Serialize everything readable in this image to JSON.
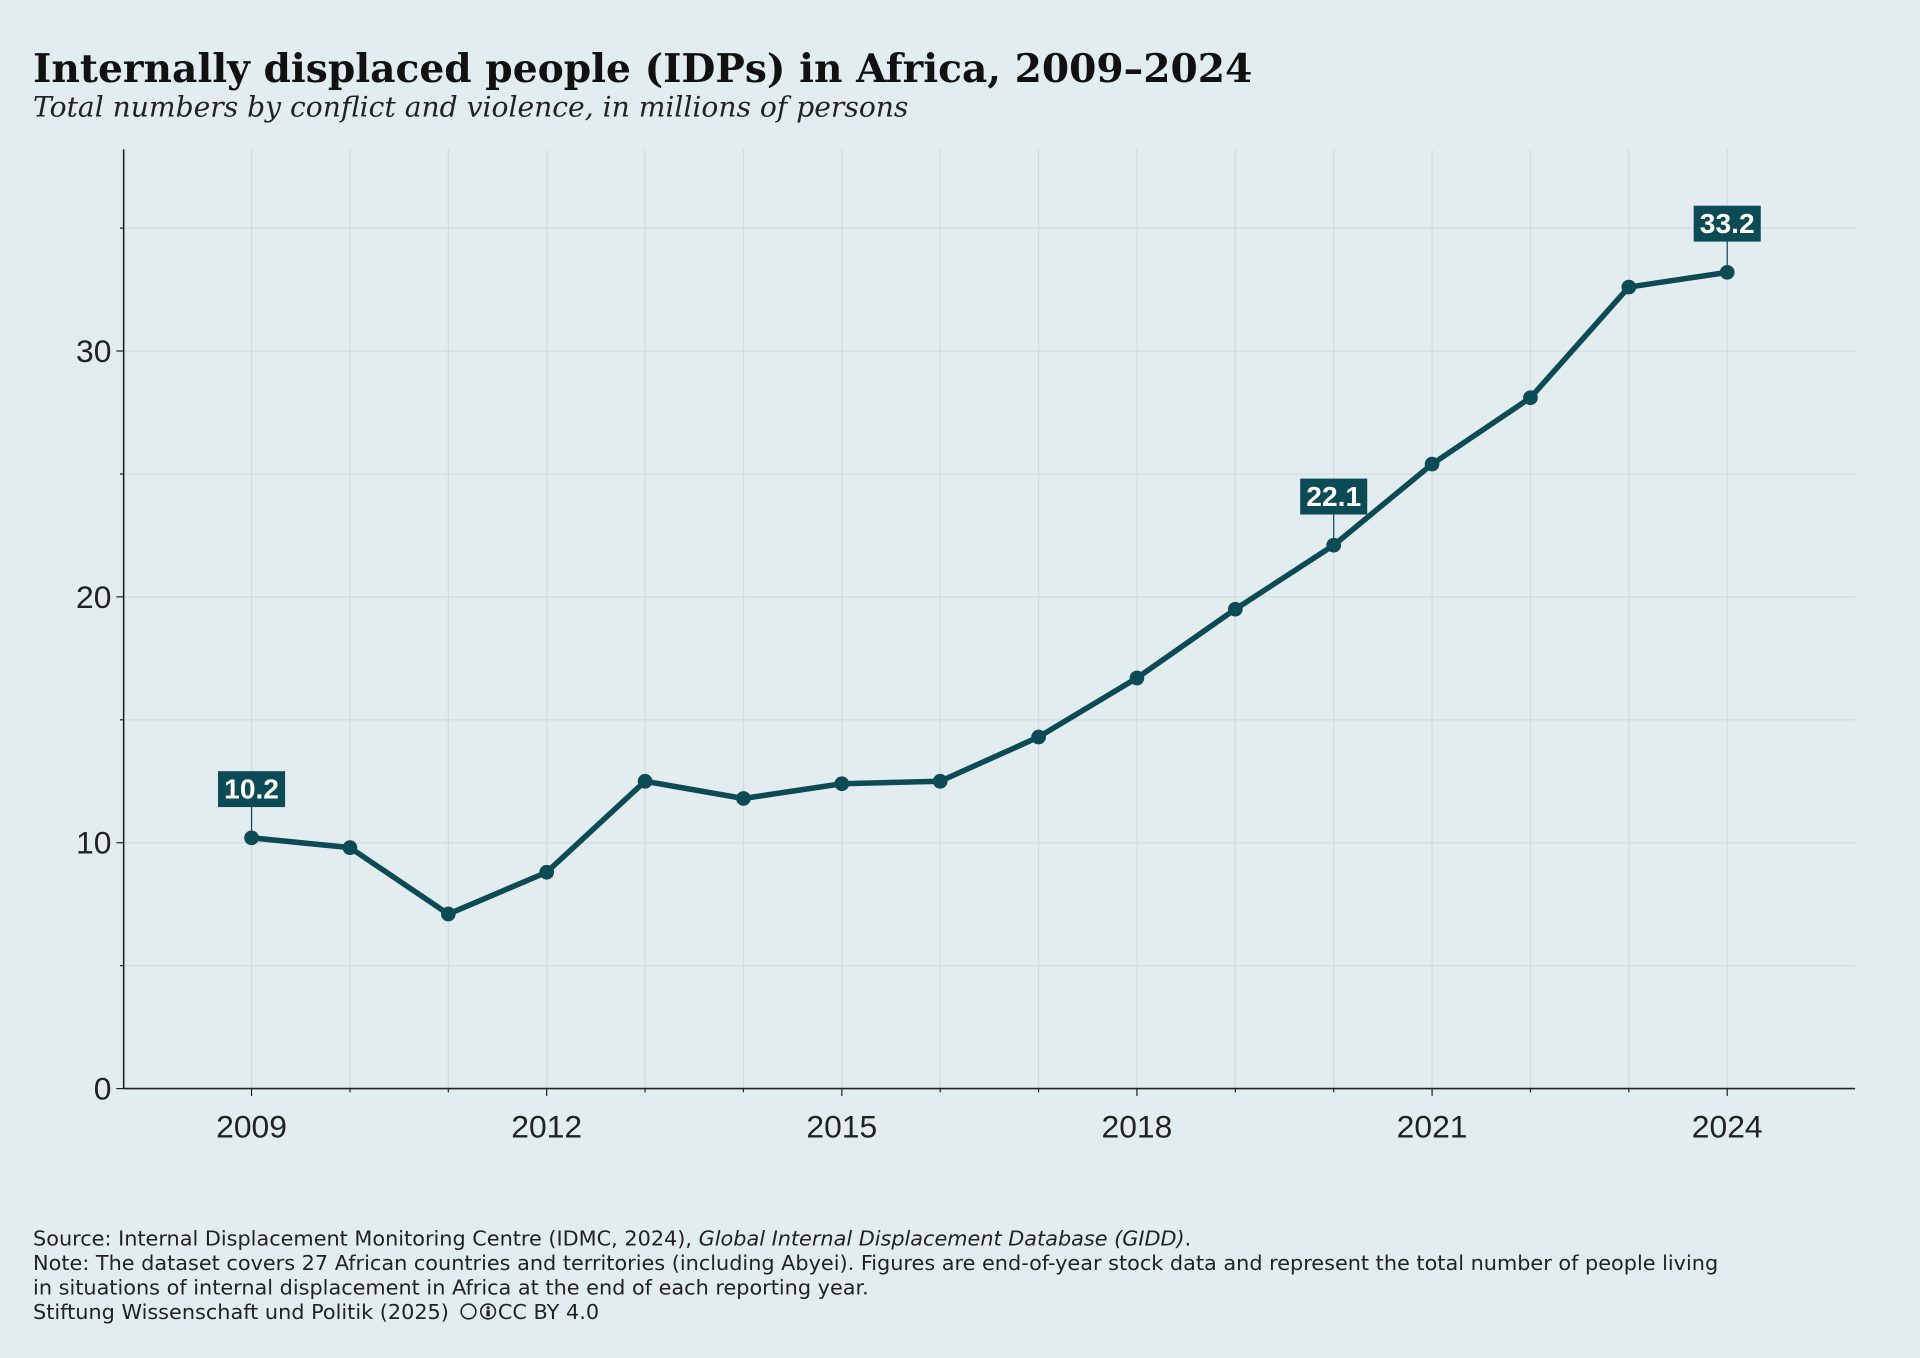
{
  "chart_data": {
    "type": "line",
    "title": "Internally displaced people (IDPs) in Africa, 2009–2024",
    "subtitle": "Total numbers by conflict and violence, in millions of persons",
    "x": [
      2009,
      2010,
      2011,
      2012,
      2013,
      2014,
      2015,
      2016,
      2017,
      2018,
      2019,
      2020,
      2021,
      2022,
      2023,
      2024
    ],
    "values": [
      10.2,
      9.8,
      7.1,
      8.8,
      12.5,
      11.8,
      12.4,
      12.5,
      14.3,
      16.7,
      19.5,
      22.1,
      25.4,
      28.1,
      32.6,
      33.2
    ],
    "value_labels": [
      "10.2",
      null,
      null,
      null,
      null,
      null,
      null,
      null,
      null,
      null,
      null,
      "22.1",
      null,
      null,
      null,
      "33.2"
    ],
    "color": "#0c4a55",
    "xlim": [
      2007.7,
      2025.3
    ],
    "ylim": [
      0,
      38.2
    ],
    "xticks": [
      2009,
      2012,
      2015,
      2018,
      2021,
      2024
    ],
    "xminor_ticks": [
      2010,
      2011,
      2013,
      2014,
      2016,
      2017,
      2019,
      2020,
      2022,
      2023
    ],
    "yticks": [
      0,
      10,
      20,
      30
    ],
    "yminor_ticks": [
      5,
      15,
      25,
      35
    ],
    "grid": true,
    "source_prefix": "Source: Internal Displacement Monitoring Centre (IDMC, 2024), ",
    "source_title": "Global Internal Displacement Database (GIDD)",
    "source_suffix": ".",
    "note_lines": [
      "Note: The dataset covers 27 African countries and territories (including Abyei). Figures are end-of-year stock data and represent the total number of people living",
      "in situations of internal displacement in Africa at the end of each reporting year."
    ],
    "credit": "Stiftung Wissenschaft und Politik (2025)",
    "license": "CC BY 4.0"
  }
}
